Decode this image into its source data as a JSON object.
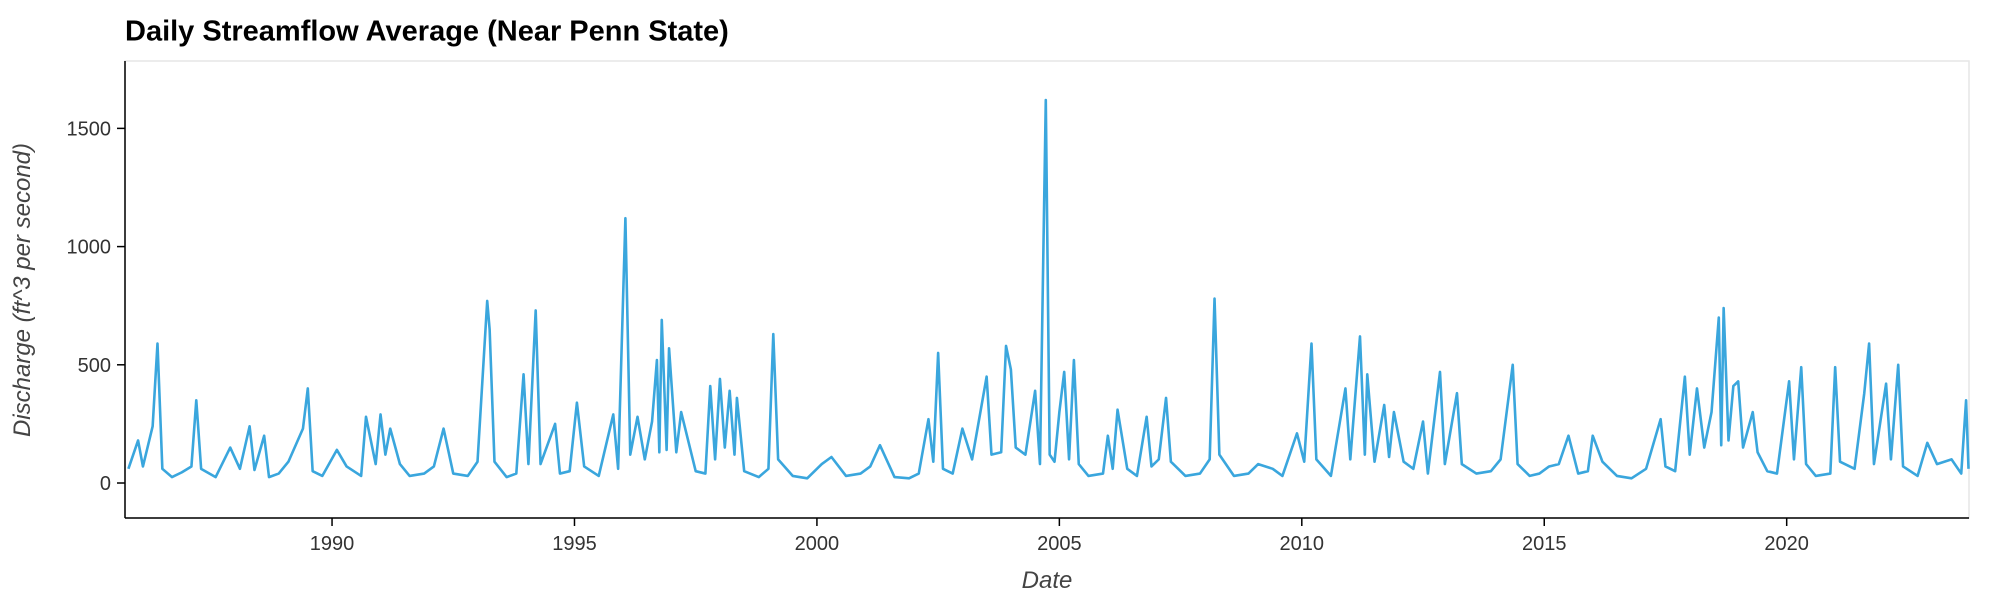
{
  "chart_data": {
    "type": "line",
    "title": "Daily Streamflow Average (Near Penn State)",
    "xlabel": "Date",
    "ylabel": "Discharge (ft^3 per second)",
    "xlim": [
      1985.73,
      2023.76
    ],
    "ylim": [
      -148,
      1785
    ],
    "xticks": [
      1990,
      1995,
      2000,
      2005,
      2010,
      2015,
      2020
    ],
    "yticks": [
      0,
      500,
      1000,
      1500
    ],
    "x": [
      1985.8,
      1986.0,
      1986.1,
      1986.3,
      1986.4,
      1986.5,
      1986.7,
      1986.9,
      1987.1,
      1987.2,
      1987.3,
      1987.6,
      1987.9,
      1988.1,
      1988.3,
      1988.4,
      1988.6,
      1988.7,
      1988.9,
      1989.1,
      1989.4,
      1989.5,
      1989.6,
      1989.8,
      1990.1,
      1990.3,
      1990.6,
      1990.7,
      1990.9,
      1991.0,
      1991.1,
      1991.2,
      1991.4,
      1991.6,
      1991.9,
      1992.1,
      1992.3,
      1992.5,
      1992.8,
      1993.0,
      1993.2,
      1993.25,
      1993.35,
      1993.6,
      1993.8,
      1993.95,
      1994.05,
      1994.2,
      1994.3,
      1994.6,
      1994.7,
      1994.9,
      1995.05,
      1995.2,
      1995.5,
      1995.8,
      1995.9,
      1996.05,
      1996.15,
      1996.3,
      1996.45,
      1996.6,
      1996.7,
      1996.75,
      1996.8,
      1996.9,
      1996.95,
      1997.1,
      1997.2,
      1997.5,
      1997.7,
      1997.8,
      1997.9,
      1998.0,
      1998.1,
      1998.2,
      1998.3,
      1998.35,
      1998.5,
      1998.8,
      1999.0,
      1999.1,
      1999.2,
      1999.5,
      1999.8,
      2000.1,
      2000.3,
      2000.6,
      2000.9,
      2001.1,
      2001.3,
      2001.6,
      2001.9,
      2002.1,
      2002.3,
      2002.4,
      2002.5,
      2002.6,
      2002.8,
      2003.0,
      2003.2,
      2003.5,
      2003.6,
      2003.8,
      2003.9,
      2004.0,
      2004.1,
      2004.3,
      2004.5,
      2004.6,
      2004.72,
      2004.8,
      2004.9,
      2005.0,
      2005.1,
      2005.2,
      2005.3,
      2005.4,
      2005.6,
      2005.9,
      2006.0,
      2006.1,
      2006.2,
      2006.4,
      2006.6,
      2006.8,
      2006.9,
      2007.05,
      2007.2,
      2007.3,
      2007.6,
      2007.9,
      2008.1,
      2008.2,
      2008.3,
      2008.6,
      2008.9,
      2009.1,
      2009.4,
      2009.6,
      2009.9,
      2010.05,
      2010.2,
      2010.3,
      2010.6,
      2010.9,
      2011.0,
      2011.2,
      2011.3,
      2011.35,
      2011.5,
      2011.7,
      2011.8,
      2011.9,
      2012.1,
      2012.3,
      2012.5,
      2012.6,
      2012.85,
      2012.95,
      2013.2,
      2013.3,
      2013.6,
      2013.9,
      2014.1,
      2014.35,
      2014.45,
      2014.7,
      2014.9,
      2015.1,
      2015.3,
      2015.5,
      2015.7,
      2015.9,
      2016.0,
      2016.2,
      2016.5,
      2016.8,
      2017.1,
      2017.4,
      2017.5,
      2017.7,
      2017.9,
      2018.0,
      2018.15,
      2018.3,
      2018.45,
      2018.6,
      2018.65,
      2018.7,
      2018.8,
      2018.9,
      2019.0,
      2019.1,
      2019.3,
      2019.4,
      2019.6,
      2019.8,
      2020.05,
      2020.15,
      2020.3,
      2020.4,
      2020.6,
      2020.9,
      2021.0,
      2021.1,
      2021.4,
      2021.6,
      2021.7,
      2021.8,
      2022.05,
      2022.15,
      2022.3,
      2022.4,
      2022.7,
      2022.9,
      2023.1,
      2023.4,
      2023.6,
      2023.7,
      2023.75
    ],
    "series": [
      {
        "color": "#3aa6dd",
        "values": [
          60,
          180,
          70,
          240,
          590,
          60,
          25,
          45,
          70,
          350,
          60,
          25,
          150,
          60,
          240,
          55,
          200,
          25,
          40,
          90,
          230,
          400,
          50,
          30,
          140,
          70,
          30,
          280,
          80,
          290,
          120,
          230,
          80,
          30,
          40,
          70,
          230,
          40,
          30,
          90,
          770,
          650,
          90,
          25,
          40,
          460,
          80,
          730,
          80,
          250,
          40,
          50,
          340,
          70,
          30,
          290,
          60,
          1120,
          120,
          280,
          100,
          260,
          520,
          130,
          690,
          140,
          570,
          130,
          300,
          50,
          40,
          410,
          100,
          440,
          150,
          390,
          120,
          360,
          50,
          25,
          60,
          630,
          100,
          30,
          20,
          80,
          110,
          30,
          40,
          70,
          160,
          25,
          20,
          40,
          270,
          90,
          550,
          60,
          40,
          230,
          100,
          450,
          120,
          130,
          580,
          480,
          150,
          120,
          390,
          80,
          1620,
          120,
          90,
          300,
          470,
          100,
          520,
          80,
          30,
          40,
          200,
          60,
          310,
          60,
          30,
          280,
          70,
          100,
          360,
          90,
          30,
          40,
          100,
          780,
          120,
          30,
          40,
          80,
          60,
          30,
          210,
          90,
          590,
          100,
          30,
          400,
          100,
          620,
          120,
          460,
          90,
          330,
          110,
          300,
          90,
          60,
          260,
          40,
          470,
          80,
          380,
          80,
          40,
          50,
          100,
          500,
          80,
          30,
          40,
          70,
          80,
          200,
          40,
          50,
          200,
          90,
          30,
          20,
          60,
          270,
          70,
          50,
          450,
          120,
          400,
          150,
          300,
          700,
          160,
          740,
          180,
          410,
          430,
          150,
          300,
          130,
          50,
          40,
          430,
          100,
          490,
          80,
          30,
          40,
          490,
          90,
          60,
          380,
          590,
          80,
          420,
          100,
          500,
          70,
          30,
          170,
          80,
          100,
          40,
          350,
          60
        ]
      }
    ]
  }
}
